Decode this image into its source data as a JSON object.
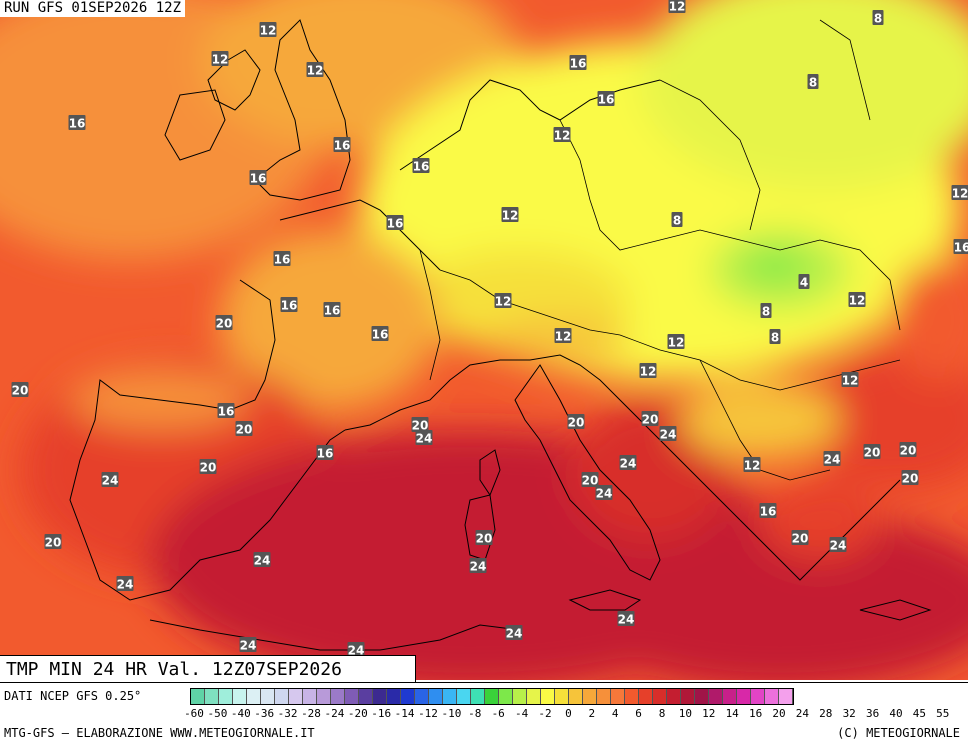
{
  "header": {
    "run_title": "RUN GFS 01SEP2026 12Z"
  },
  "product": {
    "title": "TMP MIN 24 HR Val. 12Z07SEP2026"
  },
  "footer": {
    "data_source": "DATI NCEP GFS 0.25°",
    "credit_left": "MTG-GFS – ELABORAZIONE WWW.METEOGIORNALE.IT",
    "credit_right": "(C) METEOGIORNALE"
  },
  "legend": {
    "tick_labels": [
      "-60",
      "-50",
      "-40",
      "-36",
      "-32",
      "-28",
      "-24",
      "-20",
      "-16",
      "-14",
      "-12",
      "-10",
      "-8",
      "-6",
      "-4",
      "-2",
      "0",
      "2",
      "4",
      "6",
      "8",
      "10",
      "12",
      "14",
      "16",
      "20",
      "24",
      "28",
      "32",
      "36",
      "40",
      "45",
      "55"
    ],
    "colors": [
      "#5fd3a6",
      "#7fe0c0",
      "#9feedb",
      "#c8f4ee",
      "#dcf0f4",
      "#d9e6f2",
      "#cfd7ef",
      "#d6c8ee",
      "#c8b4e6",
      "#b89ad9",
      "#9b7ac8",
      "#7f5cb5",
      "#5a3ea0",
      "#3c2a90",
      "#2a2aa8",
      "#1f3ad0",
      "#2a64e6",
      "#2f8ef0",
      "#3ab6f4",
      "#4ad6f0",
      "#3ee0b4",
      "#3ad23a",
      "#7de84a",
      "#b8f04a",
      "#e6f44a",
      "#fafa46",
      "#f6e03a",
      "#f6c43a",
      "#f6a83a",
      "#f6903a",
      "#f6783a",
      "#f25a2e",
      "#e6402a",
      "#d82e2a",
      "#c41e30",
      "#b01838",
      "#a01448",
      "#b01a6a",
      "#c8208a",
      "#d828a8",
      "#e244c6",
      "#ec70dc",
      "#f4a0ec"
    ],
    "color_roles": {
      "warmest_sea": "#c41e30",
      "warm_land": "#f25a2e",
      "mild": "#f6a83a",
      "cool": "#fafa46",
      "cold_pocket": "#7de84a"
    }
  },
  "map_labels": [
    {
      "text": "12"
    },
    {
      "text": "8"
    },
    {
      "text": "12"
    },
    {
      "text": "12"
    },
    {
      "text": "12"
    },
    {
      "text": "16"
    },
    {
      "text": "8"
    },
    {
      "text": "16"
    },
    {
      "text": "12"
    },
    {
      "text": "16"
    },
    {
      "text": "16"
    },
    {
      "text": "16"
    },
    {
      "text": "12"
    },
    {
      "text": "16"
    },
    {
      "text": "12"
    },
    {
      "text": "8"
    },
    {
      "text": "16"
    },
    {
      "text": "4"
    },
    {
      "text": "12"
    },
    {
      "text": "16"
    },
    {
      "text": "16"
    },
    {
      "text": "12"
    },
    {
      "text": "8"
    },
    {
      "text": "20"
    },
    {
      "text": "16"
    },
    {
      "text": "12"
    },
    {
      "text": "8"
    },
    {
      "text": "20"
    },
    {
      "text": "12"
    },
    {
      "text": "16"
    },
    {
      "text": "12"
    },
    {
      "text": "16"
    },
    {
      "text": "20"
    },
    {
      "text": "20"
    },
    {
      "text": "16"
    },
    {
      "text": "12"
    },
    {
      "text": "20"
    },
    {
      "text": "20"
    },
    {
      "text": "24"
    },
    {
      "text": "24"
    },
    {
      "text": "24"
    },
    {
      "text": "20"
    },
    {
      "text": "24"
    },
    {
      "text": "24"
    },
    {
      "text": "20"
    },
    {
      "text": "20"
    },
    {
      "text": "16"
    },
    {
      "text": "24"
    },
    {
      "text": "12"
    },
    {
      "text": "20"
    },
    {
      "text": "24"
    },
    {
      "text": "24"
    },
    {
      "text": "20"
    },
    {
      "text": "24"
    },
    {
      "text": "24"
    },
    {
      "text": "20"
    },
    {
      "text": "16"
    },
    {
      "text": "24"
    },
    {
      "text": "24"
    },
    {
      "text": "24"
    },
    {
      "text": "24"
    },
    {
      "text": "20"
    },
    {
      "text": "20"
    }
  ]
}
